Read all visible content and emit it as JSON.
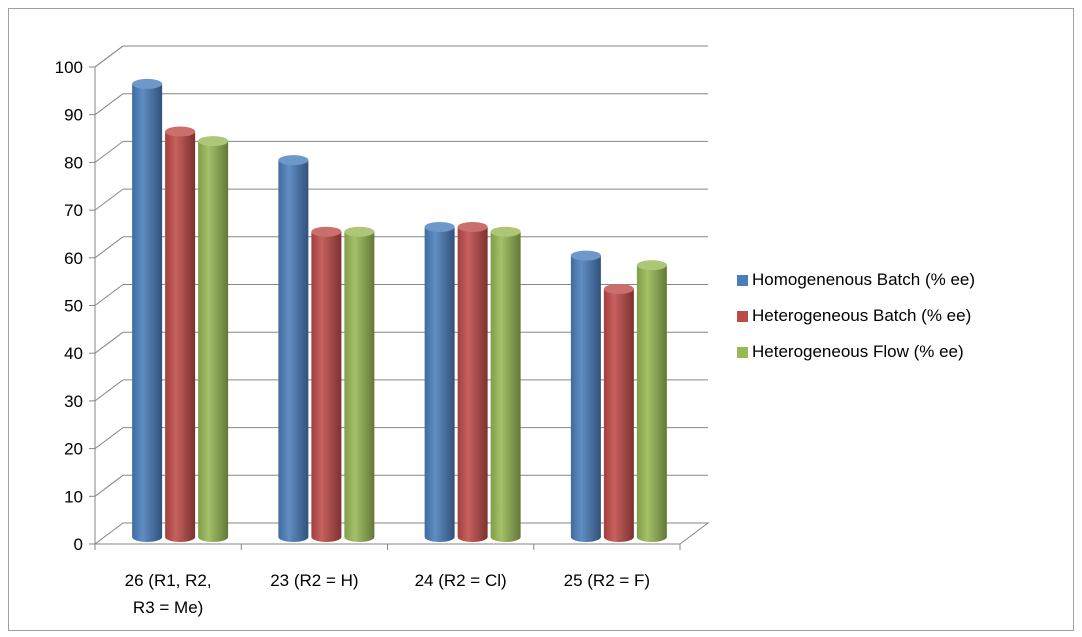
{
  "chart_data": {
    "type": "bar",
    "categories": [
      [
        "26 (R1, R2,",
        "R3 =  Me)"
      ],
      [
        "23 (R2 = H)"
      ],
      [
        "24 (R2 = Cl)"
      ],
      [
        "25 (R2 = F)"
      ]
    ],
    "series": [
      {
        "name": "Homogenenous Batch (% ee)",
        "values": [
          95,
          79,
          65,
          59
        ],
        "color": "#4a7ebb"
      },
      {
        "name": "Heterogeneous Batch (% ee)",
        "values": [
          85,
          64,
          65,
          52
        ],
        "color": "#be4b48"
      },
      {
        "name": "Heterogeneous Flow (% ee)",
        "values": [
          83,
          64,
          64,
          57
        ],
        "color": "#98b954"
      }
    ],
    "ylim": [
      0,
      100
    ],
    "yticks": [
      0,
      10,
      20,
      30,
      40,
      50,
      60,
      70,
      80,
      90,
      100
    ],
    "grid": true,
    "legend": "right",
    "style": "3d-cylinder"
  }
}
